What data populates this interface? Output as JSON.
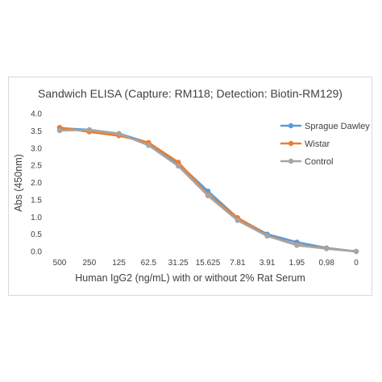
{
  "chart_data": {
    "type": "line",
    "title": "Sandwich ELISA (Capture: RM118; Detection: Biotin-RM129)",
    "xlabel": "Human IgG2 (ng/mL) with or without 2% Rat Serum",
    "ylabel": "Abs (450nm)",
    "categories": [
      "500",
      "250",
      "125",
      "62.5",
      "31.25",
      "15.625",
      "7.81",
      "3.91",
      "1.95",
      "0.98",
      "0"
    ],
    "ylim": [
      0.0,
      4.0
    ],
    "yticks": [
      "0.0",
      "0.5",
      "1.0",
      "1.5",
      "2.0",
      "2.5",
      "3.0",
      "3.5",
      "4.0"
    ],
    "grid": false,
    "legend_position": "right",
    "series": [
      {
        "name": "Sprague Dawley",
        "color": "#5b9bd5",
        "values": [
          3.58,
          3.53,
          3.42,
          3.15,
          2.55,
          1.75,
          0.97,
          0.5,
          0.27,
          0.1,
          0.0
        ]
      },
      {
        "name": "Wistar",
        "color": "#ed7d31",
        "values": [
          3.6,
          3.47,
          3.36,
          3.16,
          2.59,
          1.65,
          0.98,
          0.46,
          0.19,
          0.09,
          0.0
        ]
      },
      {
        "name": "Control",
        "color": "#a5a5a5",
        "values": [
          3.51,
          3.53,
          3.42,
          3.08,
          2.48,
          1.62,
          0.9,
          0.45,
          0.18,
          0.08,
          0.0
        ]
      }
    ]
  }
}
